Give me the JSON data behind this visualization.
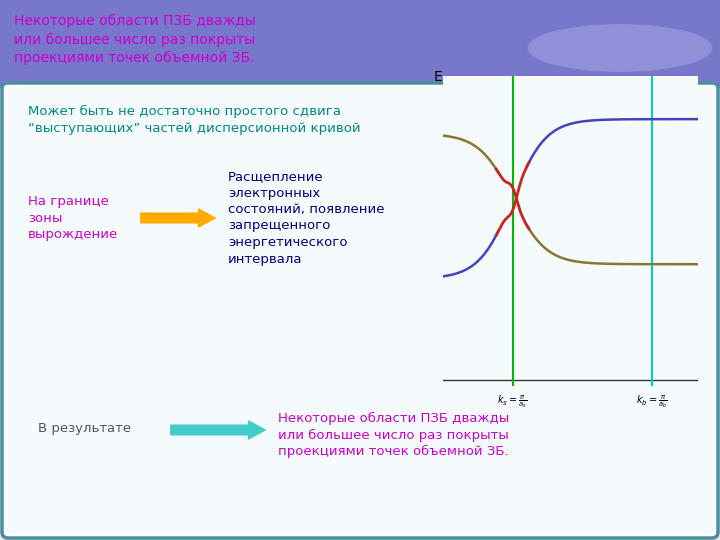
{
  "title_text": "Некоторые области ПЗБ дважды\nили большее число раз покрыты\nпроекциями точек объемной ЗБ.",
  "title_color": "#cc00cc",
  "header_bg_color": "#7777cc",
  "body_border_color": "#4a8fa0",
  "body_bg_color": "#f0f8f8",
  "text1": "Может быть не достаточно простого сдвига\n“выступающих” частей дисперсионной кривой",
  "text1_color": "#008888",
  "text2_left": "На границе\nзоны\nвырождение",
  "text2_color": "#cc00cc",
  "arrow1_color": "#ffaa00",
  "text3": "Расщепление\nэлектронных\nсостояний, появление\nзапрещенного\nэнергетического\nинтервала",
  "text3_color": "#000080",
  "text4_left": "В результате",
  "text4_color": "#555555",
  "arrow2_color": "#44cccc",
  "text5": "Некоторые области ПЗБ дважды\nили большее число раз покрыты\nпроекциями точек объемной ЗБ.",
  "text5_color": "#cc00cc",
  "vline1_color": "#00bb00",
  "vline2_color": "#00cccc",
  "curve_blue_color": "#4444bb",
  "curve_brown_color": "#887733",
  "split_color": "#cc2222",
  "axis_color": "#333333",
  "xlabel1": "$k_s = \\frac{\\pi}{a_s}$",
  "xlabel2": "$k_b = \\frac{\\pi}{a_b}$",
  "fig_bg": "#e8e8e8"
}
